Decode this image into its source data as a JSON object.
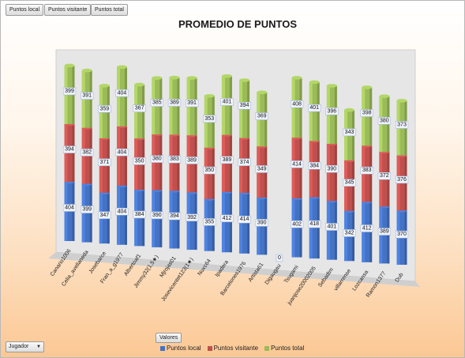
{
  "field_buttons": [
    "Puntos local",
    "Puntos visitante",
    "Puntos total"
  ],
  "filter": {
    "label": "Jugador",
    "arrow": "▼"
  },
  "values_button": "Valores",
  "colors": {
    "local": "#4472c4",
    "visitante": "#c0504d",
    "total": "#9bbb59",
    "wall": "#e6e6e6",
    "floor": "#cfcfcf"
  },
  "chart_data": {
    "type": "bar",
    "stacked": true,
    "three_d": true,
    "title": "PROMEDIO DE PUNTOS",
    "categories": [
      "Canario1006",
      "Celia_avellaneda",
      "Josebarce",
      "Fran_a_g1977",
      "Albertoaf1",
      "Jimmy32(1,5★)",
      "Mjrojas01",
      "Josevicentet123(1★)",
      "Nuxc64",
      "Ipadera",
      "Barcelones1976",
      "Artista61",
      "Digaugau",
      "Tsugami",
      "juanjose20002005",
      "Sebadtm",
      "villarrense",
      "Lozcansa",
      "Ramon1377",
      "Dub"
    ],
    "series": [
      {
        "name": "Puntos local",
        "values": [
          404,
          399,
          347,
          404,
          384,
          390,
          394,
          392,
          355,
          412,
          414,
          390,
          0,
          402,
          418,
          401,
          342,
          412,
          389,
          370
        ]
      },
      {
        "name": "Puntos visitante",
        "values": [
          394,
          382,
          371,
          404,
          350,
          380,
          383,
          389,
          350,
          389,
          374,
          349,
          0,
          414,
          384,
          390,
          345,
          383,
          372,
          376
        ]
      },
      {
        "name": "Puntos total",
        "values": [
          399,
          391,
          359,
          404,
          367,
          385,
          389,
          391,
          353,
          401,
          394,
          369,
          0,
          408,
          401,
          396,
          343,
          398,
          380,
          373
        ]
      }
    ],
    "legend_position": "bottom",
    "grid": false
  }
}
